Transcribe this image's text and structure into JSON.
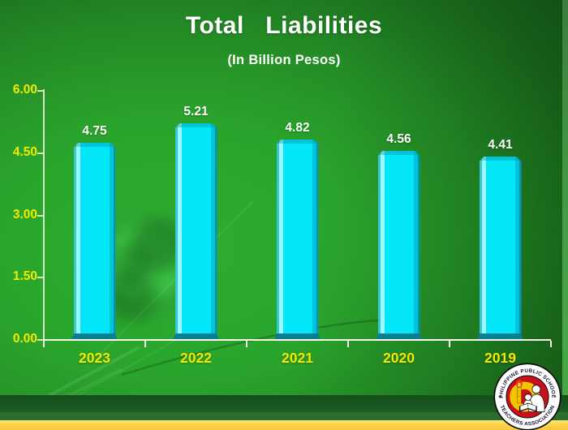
{
  "chart_data": {
    "type": "bar",
    "title": "Total   Liabilities",
    "subtitle": "(In Billion Pesos)",
    "categories": [
      "2023",
      "2022",
      "2021",
      "2020",
      "2019"
    ],
    "values": [
      4.75,
      5.21,
      4.82,
      4.56,
      4.41
    ],
    "value_labels": [
      "4.75",
      "5.21",
      "4.82",
      "4.56",
      "4.41"
    ],
    "xlabel": "",
    "ylabel": "",
    "ylim": [
      0,
      6
    ],
    "yticks": [
      "6.00",
      "4.50",
      "3.00",
      "1.50",
      "0.00"
    ],
    "grid": false,
    "legend": false,
    "bar_color": "#04e7f8"
  },
  "logo": {
    "text_top": "PHILIPPINE PUBLIC SCHOOL",
    "text_bottom": "TEACHERS ASSOCIATION"
  },
  "colors": {
    "title": "#ffffff",
    "bar_face": "#04e7f8",
    "bar_highlight": "#9df8ff",
    "bar_shadow": "#0795ad",
    "bar_base": "#0a7f93",
    "axis_y": "#e9f0cf",
    "axis_x": "#f7f7ee",
    "tick_label": "#f2ea00",
    "category_label": "#f6e800",
    "value_label": "#ffffff",
    "band_dark_green": "#1d5c22",
    "band_mid_green": "#2d6e2f",
    "band_yellow_top": "#ffe873",
    "band_yellow_bottom": "#f9c83b",
    "logo_red": "#c6101b",
    "logo_yellow": "#f4c400"
  }
}
